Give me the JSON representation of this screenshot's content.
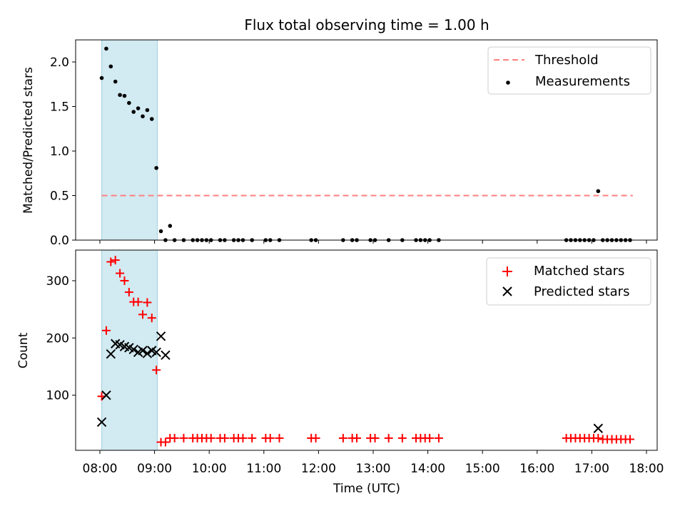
{
  "chart_data": [
    {
      "type": "scatter",
      "title": "Flux total observing time = 1.00 h",
      "xlabel": "",
      "ylabel": "Matched/Predicted stars",
      "ylim": [
        0,
        2.25
      ],
      "yticks": [
        "0.0",
        "0.5",
        "1.0",
        "1.5",
        "2.0"
      ],
      "xticks": [
        "08:00",
        "09:00",
        "10:00",
        "11:00",
        "12:00",
        "13:00",
        "14:00",
        "15:00",
        "16:00",
        "17:00",
        "18:00"
      ],
      "shaded_interval": [
        "08:02",
        "09:03"
      ],
      "legend": [
        "Threshold",
        "Measurements"
      ],
      "threshold": {
        "name": "Threshold",
        "y": 0.5,
        "x_range": [
          "08:02",
          "17:45"
        ],
        "color": "#ff7f7f"
      },
      "series": [
        {
          "name": "Measurements",
          "x": [
            "08:02",
            "08:07",
            "08:12",
            "08:17",
            "08:22",
            "08:27",
            "08:32",
            "08:37",
            "08:42",
            "08:47",
            "08:52",
            "08:57",
            "09:02",
            "09:07",
            "09:12",
            "09:17",
            "09:22",
            "09:32",
            "09:42",
            "09:47",
            "09:52",
            "09:57",
            "10:02",
            "10:12",
            "10:17",
            "10:27",
            "10:32",
            "10:37",
            "10:47",
            "11:02",
            "11:07",
            "11:17",
            "11:52",
            "11:57",
            "12:27",
            "12:37",
            "12:42",
            "12:57",
            "13:02",
            "13:17",
            "13:32",
            "13:47",
            "13:52",
            "13:57",
            "14:02",
            "14:12",
            "16:32",
            "16:37",
            "16:42",
            "16:47",
            "16:52",
            "16:57",
            "17:02",
            "17:07",
            "17:12",
            "17:17",
            "17:22",
            "17:27",
            "17:32",
            "17:37",
            "17:42"
          ],
          "y": [
            1.82,
            2.15,
            1.95,
            1.78,
            1.63,
            1.62,
            1.54,
            1.44,
            1.48,
            1.39,
            1.46,
            1.36,
            0.81,
            0.1,
            0.0,
            0.16,
            0.0,
            0.0,
            0.0,
            0.0,
            0.0,
            0.0,
            0.0,
            0.0,
            0.0,
            0.0,
            0.0,
            0.0,
            0.0,
            0.0,
            0.0,
            0.0,
            0.0,
            0.0,
            0.0,
            0.0,
            0.0,
            0.0,
            0.0,
            0.0,
            0.0,
            0.0,
            0.0,
            0.0,
            0.0,
            0.0,
            0.0,
            0.0,
            0.0,
            0.0,
            0.0,
            0.0,
            0.0,
            0.55,
            0.0,
            0.0,
            0.0,
            0.0,
            0.0,
            0.0,
            0.0
          ],
          "color": "#000000"
        }
      ]
    },
    {
      "type": "scatter",
      "title": "",
      "xlabel": "Time (UTC)",
      "ylabel": "Count",
      "ylim": [
        0,
        350
      ],
      "yticks": [
        "100",
        "200",
        "300"
      ],
      "xticks": [
        "08:00",
        "09:00",
        "10:00",
        "11:00",
        "12:00",
        "13:00",
        "14:00",
        "15:00",
        "16:00",
        "17:00",
        "18:00"
      ],
      "shaded_interval": [
        "08:02",
        "09:03"
      ],
      "legend": [
        "Matched stars",
        "Predicted stars"
      ],
      "series": [
        {
          "name": "Matched stars",
          "marker": "plus",
          "color": "#ff0000",
          "x": [
            "08:02",
            "08:07",
            "08:12",
            "08:17",
            "08:22",
            "08:27",
            "08:32",
            "08:37",
            "08:42",
            "08:47",
            "08:52",
            "08:57",
            "09:02",
            "09:07",
            "09:12",
            "09:17",
            "09:22",
            "09:32",
            "09:42",
            "09:47",
            "09:52",
            "09:57",
            "10:02",
            "10:12",
            "10:17",
            "10:27",
            "10:32",
            "10:37",
            "10:47",
            "11:02",
            "11:07",
            "11:17",
            "11:52",
            "11:57",
            "12:27",
            "12:37",
            "12:42",
            "12:57",
            "13:02",
            "13:17",
            "13:32",
            "13:47",
            "13:52",
            "13:57",
            "14:02",
            "14:12",
            "16:32",
            "16:37",
            "16:42",
            "16:47",
            "16:52",
            "16:57",
            "17:02",
            "17:07",
            "17:12",
            "17:17",
            "17:22",
            "17:27",
            "17:32",
            "17:37",
            "17:42"
          ],
          "y": [
            98,
            213,
            333,
            336,
            313,
            300,
            280,
            263,
            263,
            241,
            262,
            235,
            144,
            18,
            18,
            25,
            25,
            25,
            25,
            25,
            25,
            25,
            25,
            25,
            25,
            25,
            25,
            25,
            25,
            25,
            25,
            25,
            25,
            25,
            25,
            25,
            25,
            25,
            25,
            25,
            25,
            25,
            25,
            25,
            25,
            25,
            25,
            25,
            25,
            25,
            25,
            25,
            25,
            25,
            23,
            23,
            23,
            23,
            23,
            23,
            23
          ]
        },
        {
          "name": "Predicted stars",
          "marker": "x",
          "color": "#000000",
          "x": [
            "08:02",
            "08:07",
            "08:12",
            "08:17",
            "08:22",
            "08:27",
            "08:32",
            "08:37",
            "08:42",
            "08:47",
            "08:52",
            "08:57",
            "09:02",
            "09:07",
            "09:12",
            "17:07"
          ],
          "y": [
            53,
            100,
            172,
            190,
            188,
            185,
            183,
            180,
            175,
            178,
            173,
            178,
            175,
            203,
            170,
            42
          ]
        }
      ]
    }
  ]
}
